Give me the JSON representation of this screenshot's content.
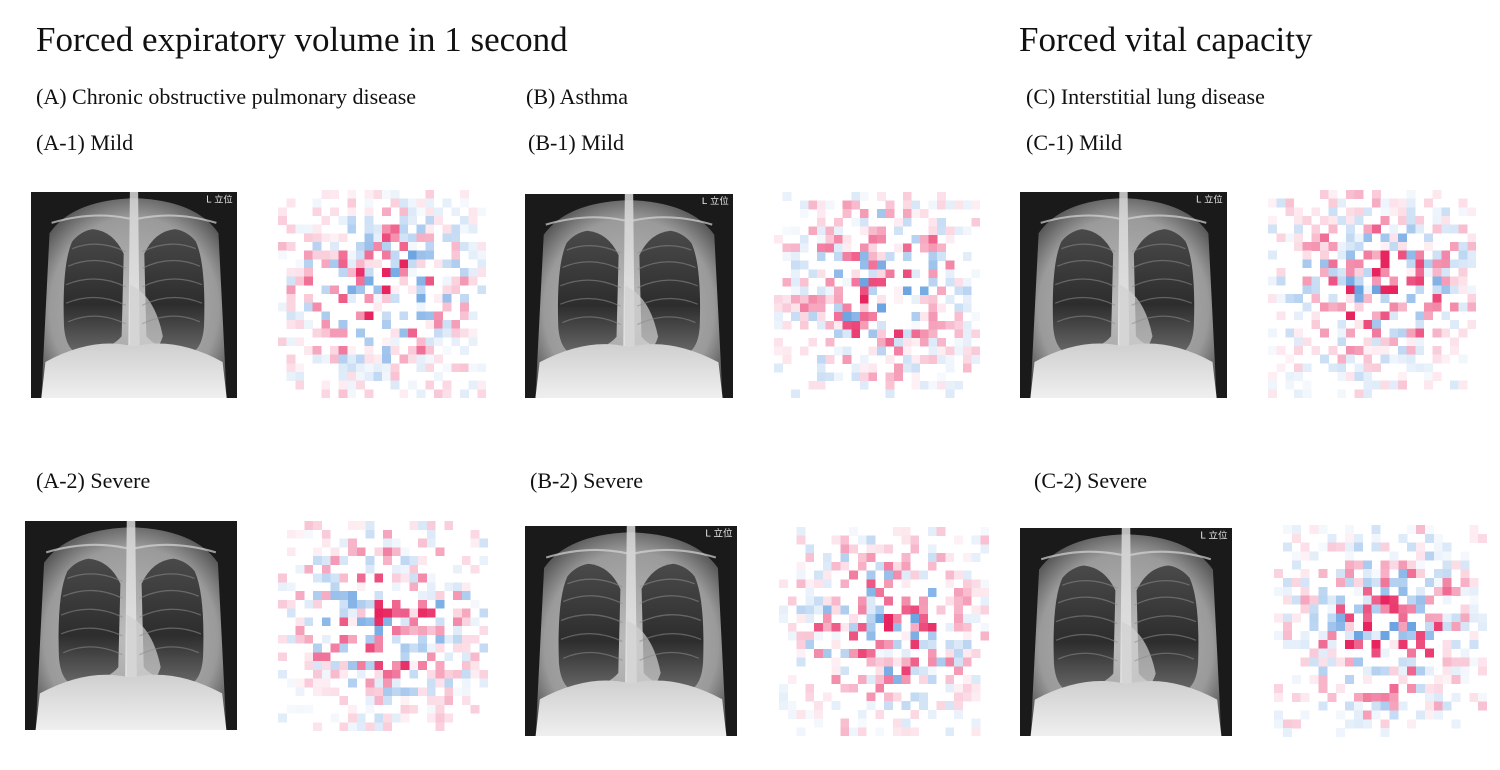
{
  "titles": {
    "fev1": "Forced expiratory volume in 1 second",
    "fvc": "Forced vital capacity"
  },
  "groups": {
    "A": "(A) Chronic obstructive pulmonary disease",
    "B": "(B) Asthma",
    "C": "(C) Interstitial lung disease"
  },
  "panels": {
    "A1": "(A-1) Mild",
    "A2": "(A-2) Severe",
    "B1": "(B-1) Mild",
    "B2": "(B-2) Severe",
    "C1": "(C-1) Mild",
    "C2": "(C-2) Severe"
  },
  "xray_marker": "L 立位",
  "colors": {
    "positive": "#e8245f",
    "negative": "#2f7fd6",
    "background": "#ffffff"
  }
}
